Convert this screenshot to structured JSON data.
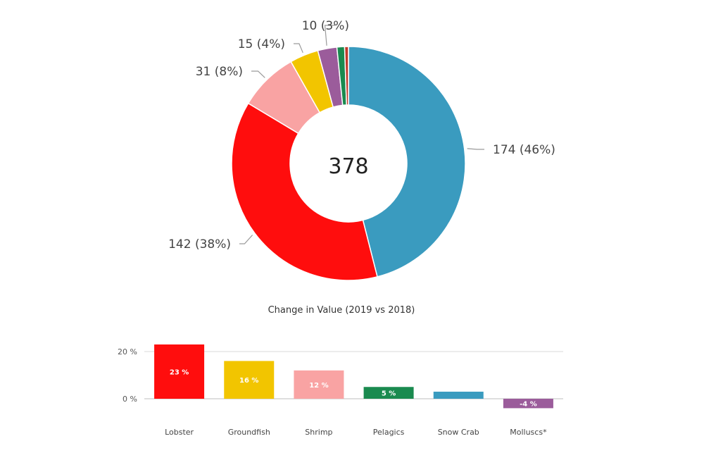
{
  "chart_data": [
    {
      "type": "pie",
      "variant": "donut",
      "center_label": "378",
      "slices": [
        {
          "value": 174,
          "label": "174 (46%)",
          "color": "#3a9bbf"
        },
        {
          "value": 142,
          "label": "142 (38%)",
          "color": "#ff0d0d"
        },
        {
          "value": 31,
          "label": "31 (8%)",
          "color": "#f9a3a3"
        },
        {
          "value": 15,
          "label": "15 (4%)",
          "color": "#f2c500"
        },
        {
          "value": 10,
          "label": "10 (3%)",
          "color": "#9b5c9b"
        },
        {
          "value": 4,
          "label": "",
          "color": "#1a8a4f"
        },
        {
          "value": 2,
          "label": "",
          "color": "#c0392b"
        }
      ]
    },
    {
      "type": "bar",
      "title": "Change in Value (2019 vs 2018)",
      "categories": [
        "Lobster",
        "Groundfish",
        "Shrimp",
        "Pelagics",
        "Snow Crab",
        "Molluscs*"
      ],
      "values": [
        23,
        16,
        12,
        5,
        3,
        -4
      ],
      "value_labels": [
        "23 %",
        "16 %",
        "12 %",
        "5 %",
        "",
        "-4 %"
      ],
      "colors": [
        "#ff0d0d",
        "#f2c500",
        "#f9a3a3",
        "#1a8a4f",
        "#3a9bbf",
        "#9b5c9b"
      ],
      "yticks": [
        {
          "value": 0,
          "label": "0 %"
        },
        {
          "value": 20,
          "label": "20 %"
        }
      ],
      "ylim": [
        -6,
        24
      ],
      "grid": true
    }
  ]
}
